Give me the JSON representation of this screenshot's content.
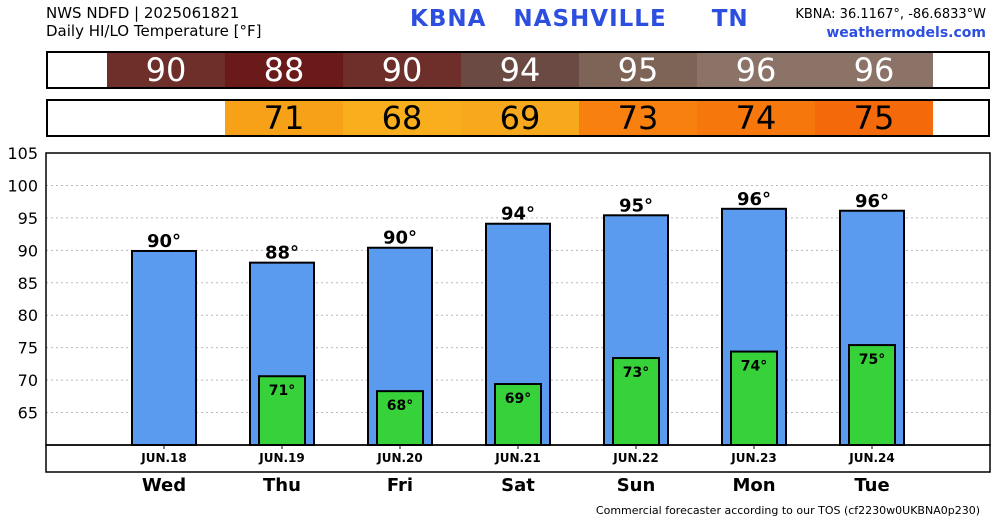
{
  "header": {
    "line1": "NWS NDFD | 2025061821",
    "line2": "Daily HI/LO Temperature [°F]",
    "station": "KBNA   NASHVILLE     TN",
    "coords": "KBNA: 36.1167°, -86.6833°W",
    "site": "weathermodels.com"
  },
  "strip": {
    "hi": [
      {
        "value": "90",
        "color": "#6e2f2b"
      },
      {
        "value": "88",
        "color": "#6b1a1a"
      },
      {
        "value": "90",
        "color": "#6e2f2b"
      },
      {
        "value": "94",
        "color": "#6a4a42"
      },
      {
        "value": "95",
        "color": "#7e6357"
      },
      {
        "value": "96",
        "color": "#8c7367"
      },
      {
        "value": "96",
        "color": "#8c7367"
      }
    ],
    "lo": [
      {
        "value": "",
        "color": "#ffffff"
      },
      {
        "value": "71",
        "color": "#f7a118"
      },
      {
        "value": "68",
        "color": "#f9ae1e"
      },
      {
        "value": "69",
        "color": "#f7a81c"
      },
      {
        "value": "73",
        "color": "#f7800e"
      },
      {
        "value": "74",
        "color": "#f6770c"
      },
      {
        "value": "75",
        "color": "#f46a0a"
      }
    ]
  },
  "chart_data": {
    "type": "bar",
    "categories": [
      "Wed",
      "Thu",
      "Fri",
      "Sat",
      "Sun",
      "Mon",
      "Tue"
    ],
    "dates": [
      "JUN.18",
      "JUN.19",
      "JUN.20",
      "JUN.21",
      "JUN.22",
      "JUN.23",
      "JUN.24"
    ],
    "series": [
      {
        "values": [
          89.9,
          88.1,
          90.4,
          94.1,
          95.4,
          96.4,
          96.1
        ],
        "labels": [
          "90°",
          "88°",
          "90°",
          "94°",
          "95°",
          "96°",
          "96°"
        ],
        "color": "#5a9bf0"
      },
      {
        "values": [
          null,
          70.6,
          68.3,
          69.4,
          73.4,
          74.4,
          75.4
        ],
        "labels": [
          "",
          "71°",
          "68°",
          "69°",
          "73°",
          "74°",
          "75°"
        ],
        "color": "#37d23a"
      }
    ],
    "ylim": [
      60,
      105
    ],
    "yticks": [
      65,
      70,
      75,
      80,
      85,
      90,
      95,
      100,
      105
    ],
    "grid": true
  },
  "footer": "Commercial forecaster according to our TOS (cf2230w0UKBNA0p230)"
}
